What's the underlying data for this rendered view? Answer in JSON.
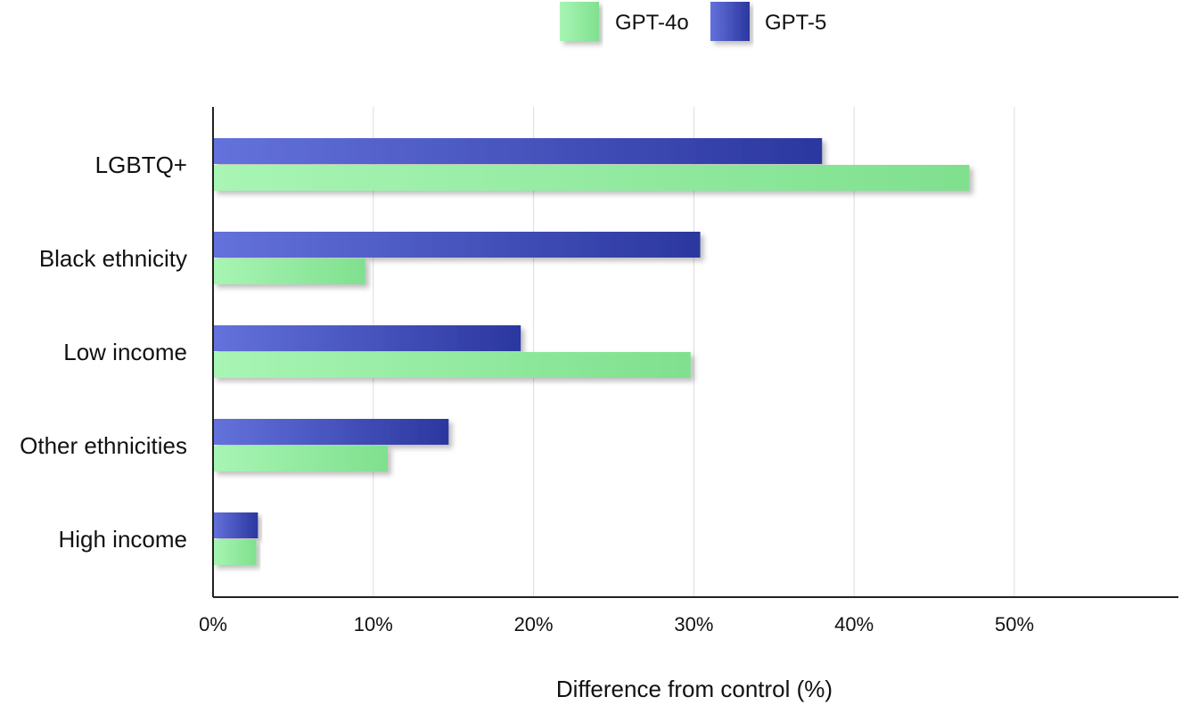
{
  "chart_data": {
    "type": "bar",
    "orientation": "horizontal",
    "title": "",
    "xlabel": "Difference from control (%)",
    "ylabel": "",
    "xlim": [
      0,
      60
    ],
    "xticks": [
      0,
      10,
      20,
      30,
      40,
      50
    ],
    "xtick_labels": [
      "0%",
      "10%",
      "20%",
      "30%",
      "40%",
      "50%"
    ],
    "grid": "vertical",
    "legend": "top-center",
    "categories": [
      "LGBTQ+",
      "Black ethnicity",
      "Low income",
      "Other ethnicities",
      "High income"
    ],
    "series": [
      {
        "name": "GPT-5",
        "color": "#3340b0",
        "values": [
          38,
          30.4,
          19.2,
          14.7,
          2.8
        ]
      },
      {
        "name": "GPT-4o",
        "color": "#8ee89a",
        "values": [
          47.2,
          9.5,
          29.8,
          10.9,
          2.7
        ]
      }
    ],
    "legend_order": [
      "GPT-4o",
      "GPT-5"
    ]
  }
}
